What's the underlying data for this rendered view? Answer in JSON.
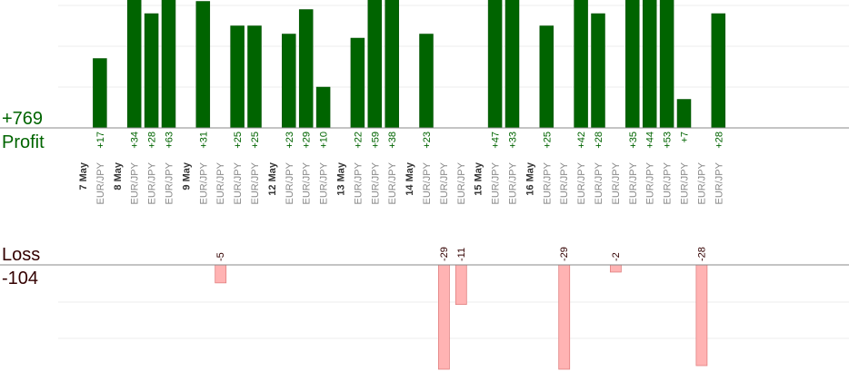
{
  "summary": {
    "profit_total": "+769",
    "profit_label": "Profit",
    "loss_label": "Loss",
    "loss_total": "-104"
  },
  "colors": {
    "profit_bar": "#006400",
    "profit_bar_edge": "#004d00",
    "profit_text": "#006400",
    "loss_bar": "#ffb3b3",
    "loss_bar_edge": "#e08080",
    "loss_text": "#330000",
    "axis": "#888888",
    "grid": "#eeeeee"
  },
  "chart_data": {
    "type": "bar",
    "profit_axis_top": 30,
    "loss_axis_bottom": -25,
    "day_labels": [
      {
        "label": "7 May",
        "before_slot": 0
      },
      {
        "label": "8 May",
        "before_slot": 2
      },
      {
        "label": "9 May",
        "before_slot": 6
      },
      {
        "label": "12 May",
        "before_slot": 11
      },
      {
        "label": "13 May",
        "before_slot": 15
      },
      {
        "label": "14 May",
        "before_slot": 19
      },
      {
        "label": "15 May",
        "before_slot": 23
      },
      {
        "label": "16 May",
        "before_slot": 26
      }
    ],
    "trades": [
      {
        "pair": "EUR/JPY",
        "value": 17
      },
      {
        "pair": "EUR/JPY",
        "value": 34
      },
      {
        "pair": "EUR/JPY",
        "value": 28
      },
      {
        "pair": "EUR/JPY",
        "value": 63
      },
      {
        "pair": "EUR/JPY",
        "value": 31
      },
      {
        "pair": "EUR/JPY",
        "value": -5
      },
      {
        "pair": "EUR/JPY",
        "value": 25
      },
      {
        "pair": "EUR/JPY",
        "value": 25
      },
      {
        "pair": "EUR/JPY",
        "value": 23
      },
      {
        "pair": "EUR/JPY",
        "value": 29
      },
      {
        "pair": "EUR/JPY",
        "value": 10
      },
      {
        "pair": "EUR/JPY",
        "value": 22
      },
      {
        "pair": "EUR/JPY",
        "value": 59
      },
      {
        "pair": "EUR/JPY",
        "value": 38
      },
      {
        "pair": "EUR/JPY",
        "value": 23
      },
      {
        "pair": "EUR/JPY",
        "value": -29
      },
      {
        "pair": "EUR/JPY",
        "value": -11
      },
      {
        "pair": "EUR/JPY",
        "value": 47
      },
      {
        "pair": "EUR/JPY",
        "value": 33
      },
      {
        "pair": "EUR/JPY",
        "value": 25
      },
      {
        "pair": "EUR/JPY",
        "value": -29
      },
      {
        "pair": "EUR/JPY",
        "value": 42
      },
      {
        "pair": "EUR/JPY",
        "value": 28
      },
      {
        "pair": "EUR/JPY",
        "value": -2
      },
      {
        "pair": "EUR/JPY",
        "value": 35
      },
      {
        "pair": "EUR/JPY",
        "value": 44
      },
      {
        "pair": "EUR/JPY",
        "value": 53
      },
      {
        "pair": "EUR/JPY",
        "value": 7
      },
      {
        "pair": "EUR/JPY",
        "value": -28
      },
      {
        "pair": "EUR/JPY",
        "value": 28
      }
    ]
  }
}
